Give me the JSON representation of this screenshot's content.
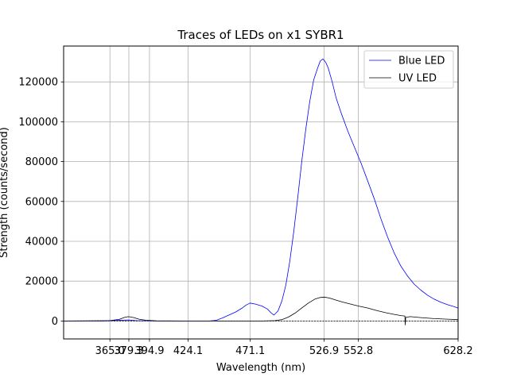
{
  "chart_data": {
    "type": "line",
    "title": "Traces of LEDs on x1 SYBR1",
    "xlabel": "Wavelength (nm)",
    "ylabel": "Strength (counts/second)",
    "xlim": [
      330,
      628.2
    ],
    "ylim": [
      -9000,
      138000
    ],
    "xticks": [
      {
        "value": 365.0,
        "label": "365.0"
      },
      {
        "value": 379.3,
        "label": "379.3"
      },
      {
        "value": 394.9,
        "label": "394.9"
      },
      {
        "value": 424.1,
        "label": "424.1"
      },
      {
        "value": 471.1,
        "label": "471.1"
      },
      {
        "value": 526.9,
        "label": "526.9"
      },
      {
        "value": 552.8,
        "label": "552.8"
      },
      {
        "value": 628.2,
        "label": "628.2"
      }
    ],
    "yticks": [
      0,
      20000,
      40000,
      60000,
      80000,
      100000,
      120000
    ],
    "ytick_labels": [
      "0",
      "20000",
      "40000",
      "60000",
      "80000",
      "100000",
      "120000"
    ],
    "grid": true,
    "legend_position": "top-right",
    "zero_line": true,
    "series": [
      {
        "name": "Blue LED",
        "color": "#0000ff",
        "points": [
          [
            330,
            0
          ],
          [
            360,
            0
          ],
          [
            370,
            300
          ],
          [
            379,
            500
          ],
          [
            385,
            200
          ],
          [
            400,
            0
          ],
          [
            440,
            0
          ],
          [
            445,
            300
          ],
          [
            450,
            1500
          ],
          [
            455,
            3000
          ],
          [
            460,
            4500
          ],
          [
            465,
            6500
          ],
          [
            468,
            8000
          ],
          [
            471,
            9000
          ],
          [
            475,
            8500
          ],
          [
            480,
            7500
          ],
          [
            484,
            6000
          ],
          [
            487,
            4000
          ],
          [
            489,
            3000
          ],
          [
            492,
            5000
          ],
          [
            495,
            10000
          ],
          [
            498,
            18000
          ],
          [
            501,
            30000
          ],
          [
            504,
            45000
          ],
          [
            507,
            62000
          ],
          [
            510,
            80000
          ],
          [
            513,
            96000
          ],
          [
            516,
            110000
          ],
          [
            519,
            121000
          ],
          [
            522,
            127000
          ],
          [
            524,
            130500
          ],
          [
            526,
            131500
          ],
          [
            528,
            130000
          ],
          [
            530,
            127000
          ],
          [
            533,
            120000
          ],
          [
            536,
            112000
          ],
          [
            540,
            104000
          ],
          [
            545,
            95000
          ],
          [
            550,
            87000
          ],
          [
            555,
            79000
          ],
          [
            560,
            70000
          ],
          [
            565,
            61000
          ],
          [
            570,
            51000
          ],
          [
            575,
            42000
          ],
          [
            580,
            34000
          ],
          [
            585,
            27500
          ],
          [
            590,
            22500
          ],
          [
            595,
            18500
          ],
          [
            600,
            15500
          ],
          [
            605,
            13000
          ],
          [
            610,
            11000
          ],
          [
            615,
            9500
          ],
          [
            620,
            8200
          ],
          [
            625,
            7200
          ],
          [
            628.2,
            6500
          ]
        ]
      },
      {
        "name": "UV LED",
        "color": "#000000",
        "points": [
          [
            330,
            0
          ],
          [
            365,
            200
          ],
          [
            372,
            800
          ],
          [
            376,
            1800
          ],
          [
            379,
            2200
          ],
          [
            383,
            1700
          ],
          [
            387,
            900
          ],
          [
            392,
            400
          ],
          [
            400,
            100
          ],
          [
            420,
            0
          ],
          [
            480,
            0
          ],
          [
            490,
            200
          ],
          [
            495,
            700
          ],
          [
            500,
            2000
          ],
          [
            505,
            4000
          ],
          [
            510,
            6500
          ],
          [
            515,
            9000
          ],
          [
            520,
            11000
          ],
          [
            524,
            11800
          ],
          [
            527,
            12000
          ],
          [
            531,
            11500
          ],
          [
            536,
            10500
          ],
          [
            541,
            9500
          ],
          [
            547,
            8500
          ],
          [
            553,
            7500
          ],
          [
            560,
            6500
          ],
          [
            567,
            5200
          ],
          [
            574,
            4100
          ],
          [
            580,
            3300
          ],
          [
            585,
            2700
          ],
          [
            588,
            2500
          ],
          [
            588.3,
            -2000
          ],
          [
            588.6,
            1800
          ],
          [
            592,
            2200
          ],
          [
            600,
            1700
          ],
          [
            610,
            1200
          ],
          [
            620,
            900
          ],
          [
            628.2,
            700
          ]
        ]
      }
    ]
  }
}
